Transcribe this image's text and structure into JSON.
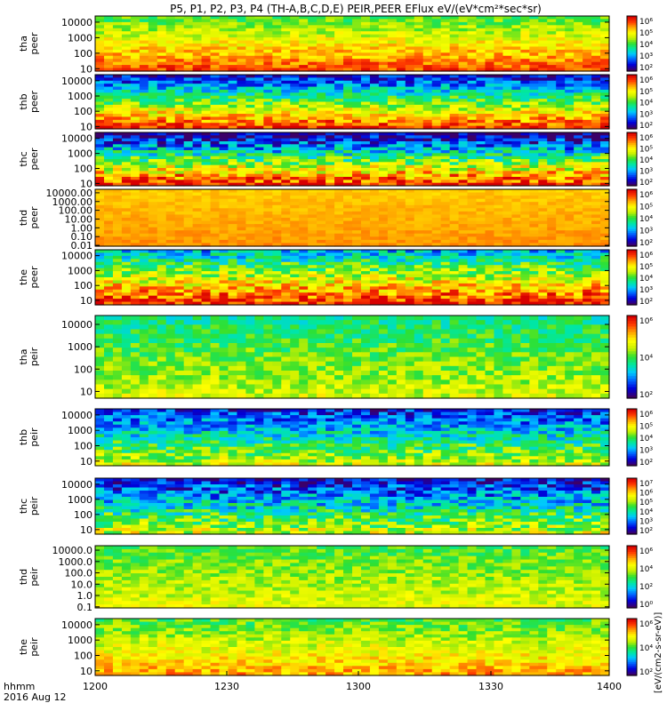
{
  "title": "P5, P1, P2, P3, P4 (TH-A,B,C,D,E) PEIR,PEER EFlux eV/(eV*cm²*sec*sr)",
  "x_axis": {
    "ticks": [
      "1200",
      "1230",
      "1300",
      "1330",
      "1400"
    ],
    "corner_label_1": "hhmm",
    "corner_label_2": "2016 Aug 12"
  },
  "colorbar_unit_label": "[eV/(cm2-s-sr-eV)]",
  "chart_data": [
    {
      "type": "heatmap",
      "panel": "tha_peer",
      "ylabel": [
        "tha",
        "peer"
      ],
      "yticks": [
        "10",
        "100",
        "1000",
        "10000"
      ],
      "ylog": true,
      "yrange": [
        7,
        25000
      ],
      "cbar_ticks": [
        "10²",
        "10³",
        "10⁴",
        "10⁵",
        "10⁶"
      ],
      "cbar_range": [
        1,
        6
      ],
      "level_min": 3.5,
      "level_max": 5.5,
      "noise": 0.25
    },
    {
      "type": "heatmap",
      "panel": "thb_peer",
      "ylabel": [
        "thb",
        "peer"
      ],
      "yticks": [
        "10",
        "100",
        "1000",
        "10000"
      ],
      "ylog": true,
      "yrange": [
        7,
        25000
      ],
      "cbar_ticks": [
        "10²",
        "10³",
        "10⁴",
        "10⁵",
        "10⁶"
      ],
      "cbar_range": [
        1,
        6
      ],
      "level_min": 1.5,
      "level_max": 5.7,
      "noise": 0.35
    },
    {
      "type": "heatmap",
      "panel": "thc_peer",
      "ylabel": [
        "thc",
        "peer"
      ],
      "yticks": [
        "10",
        "100",
        "1000",
        "10000"
      ],
      "ylog": true,
      "yrange": [
        7,
        25000
      ],
      "cbar_ticks": [
        "10²",
        "10³",
        "10⁴",
        "10⁵",
        "10⁶"
      ],
      "cbar_range": [
        1,
        6
      ],
      "level_min": 1.0,
      "level_max": 5.8,
      "noise": 0.45
    },
    {
      "type": "heatmap",
      "panel": "thd_peer",
      "ylabel": [
        "thd",
        "peer"
      ],
      "yticks": [
        "0.01",
        "0.10",
        "1.00",
        "10.00",
        "100.00",
        "1000.00",
        "10000.00"
      ],
      "ylog": true,
      "yrange": [
        0.008,
        25000
      ],
      "cbar_ticks": [
        "10²",
        "10³",
        "10⁴",
        "10⁵",
        "10⁶"
      ],
      "cbar_range": [
        1,
        6
      ],
      "level_min": 4.8,
      "level_max": 5.1,
      "noise": 0.08
    },
    {
      "type": "heatmap",
      "panel": "the_peer",
      "ylabel": [
        "the",
        "peer"
      ],
      "yticks": [
        "10",
        "100",
        "1000",
        "10000"
      ],
      "ylog": true,
      "yrange": [
        5,
        25000
      ],
      "cbar_ticks": [
        "10²",
        "10³",
        "10⁴",
        "10⁵",
        "10⁶"
      ],
      "cbar_range": [
        1,
        6
      ],
      "level_min": 2.5,
      "level_max": 5.8,
      "noise": 0.4
    },
    {
      "type": "heatmap",
      "panel": "tha_peir",
      "ylabel": [
        "tha",
        "peir"
      ],
      "yticks": [
        "10",
        "100",
        "1000",
        "10000"
      ],
      "ylog": true,
      "yrange": [
        5,
        25000
      ],
      "cbar_ticks": [
        "10²",
        "10⁴",
        "10⁶"
      ],
      "cbar_range": [
        1,
        7
      ],
      "level_min": 3.5,
      "level_max": 4.8,
      "noise": 0.3
    },
    {
      "type": "heatmap",
      "panel": "thb_peir",
      "ylabel": [
        "thb",
        "peir"
      ],
      "yticks": [
        "10",
        "100",
        "1000",
        "10000"
      ],
      "ylog": true,
      "yrange": [
        5,
        25000
      ],
      "cbar_ticks": [
        "10²",
        "10³",
        "10⁴",
        "10⁵",
        "10⁶"
      ],
      "cbar_range": [
        1,
        7
      ],
      "level_min": 1.8,
      "level_max": 4.8,
      "noise": 0.45
    },
    {
      "type": "heatmap",
      "panel": "thc_peir",
      "ylabel": [
        "thc",
        "peir"
      ],
      "yticks": [
        "10",
        "100",
        "1000",
        "10000"
      ],
      "ylog": true,
      "yrange": [
        5,
        25000
      ],
      "cbar_ticks": [
        "10²",
        "10³",
        "10⁴",
        "10⁵",
        "10⁶",
        "10⁷"
      ],
      "cbar_range": [
        1,
        7
      ],
      "level_min": 1.5,
      "level_max": 4.8,
      "noise": 0.5
    },
    {
      "type": "heatmap",
      "panel": "thd_peir",
      "ylabel": [
        "thd",
        "peir"
      ],
      "yticks": [
        "0.1",
        "1.0",
        "10.0",
        "100.0",
        "1000.0",
        "10000.0"
      ],
      "ylog": true,
      "yrange": [
        0.08,
        25000
      ],
      "cbar_ticks": [
        "10⁰",
        "10²",
        "10⁴",
        "10⁶"
      ],
      "cbar_range": [
        0,
        7
      ],
      "level_min": 3.5,
      "level_max": 4.6,
      "noise": 0.3
    },
    {
      "type": "heatmap",
      "panel": "the_peir",
      "ylabel": [
        "the",
        "peir"
      ],
      "yticks": [
        "10",
        "100",
        "1000",
        "10000"
      ],
      "ylog": true,
      "yrange": [
        5,
        25000
      ],
      "cbar_ticks": [
        "10²",
        "10⁴",
        "10⁶"
      ],
      "cbar_range": [
        1,
        7
      ],
      "level_min": 4.0,
      "level_max": 5.8,
      "noise": 0.3
    }
  ]
}
